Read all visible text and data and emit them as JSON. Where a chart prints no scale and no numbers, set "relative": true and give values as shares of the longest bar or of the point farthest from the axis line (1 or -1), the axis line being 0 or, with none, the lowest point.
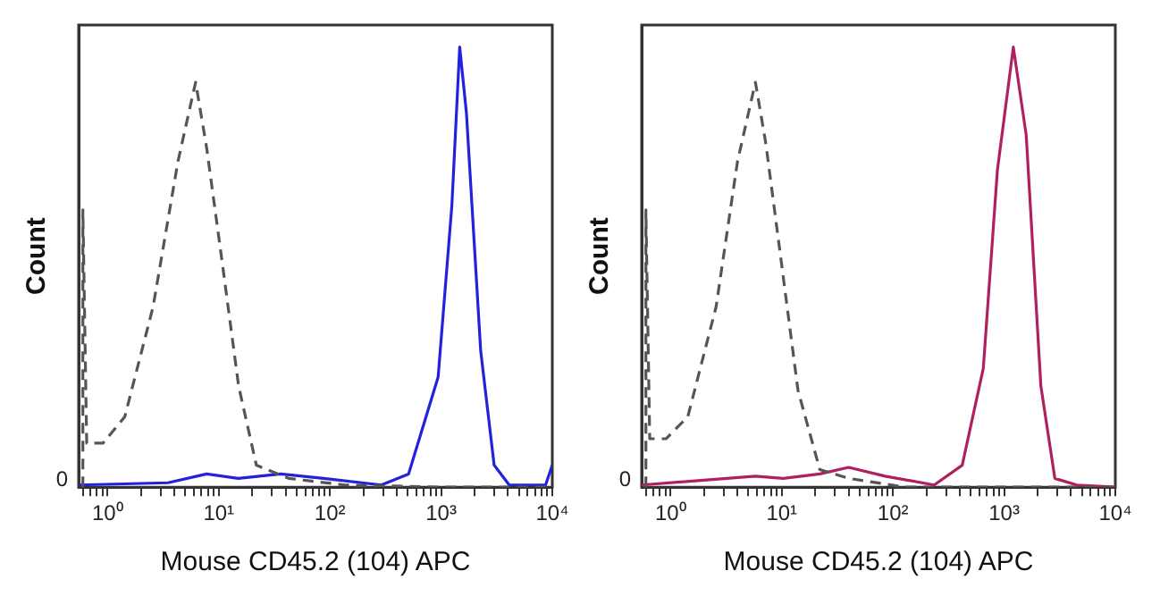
{
  "chart_data": [
    {
      "type": "line",
      "relative": true,
      "log": "x",
      "xlabel": "Mouse CD45.2 (104) APC",
      "ylabel": "Count",
      "annotations": [
        "0"
      ],
      "marker": "none",
      "grid": false,
      "xlim": [
        0.55,
        10000
      ],
      "xticks": [
        {
          "value": 0.6,
          "label": null
        },
        {
          "value": 0.7,
          "label": null
        },
        {
          "value": 0.8,
          "label": null
        },
        {
          "value": 0.9,
          "label": null
        },
        {
          "value": 1,
          "label": "10⁰"
        },
        {
          "value": 2,
          "label": null
        },
        {
          "value": 3,
          "label": null
        },
        {
          "value": 4,
          "label": null
        },
        {
          "value": 5,
          "label": null
        },
        {
          "value": 6,
          "label": null
        },
        {
          "value": 7,
          "label": null
        },
        {
          "value": 8,
          "label": null
        },
        {
          "value": 9,
          "label": null
        },
        {
          "value": 10,
          "label": "10¹"
        },
        {
          "value": 20,
          "label": null
        },
        {
          "value": 30,
          "label": null
        },
        {
          "value": 40,
          "label": null
        },
        {
          "value": 50,
          "label": null
        },
        {
          "value": 60,
          "label": null
        },
        {
          "value": 70,
          "label": null
        },
        {
          "value": 80,
          "label": null
        },
        {
          "value": 90,
          "label": null
        },
        {
          "value": 100,
          "label": "10²"
        },
        {
          "value": 200,
          "label": null
        },
        {
          "value": 300,
          "label": null
        },
        {
          "value": 400,
          "label": null
        },
        {
          "value": 500,
          "label": null
        },
        {
          "value": 600,
          "label": null
        },
        {
          "value": 700,
          "label": null
        },
        {
          "value": 800,
          "label": null
        },
        {
          "value": 900,
          "label": null
        },
        {
          "value": 1000,
          "label": "10³"
        },
        {
          "value": 2000,
          "label": null
        },
        {
          "value": 3000,
          "label": null
        },
        {
          "value": 4000,
          "label": null
        },
        {
          "value": 5000,
          "label": null
        },
        {
          "value": 6000,
          "label": null
        },
        {
          "value": 7000,
          "label": null
        },
        {
          "value": 8000,
          "label": null
        },
        {
          "value": 9000,
          "label": null
        },
        {
          "value": 10000,
          "label": "10⁴"
        }
      ],
      "series": [
        {
          "color": "#555555",
          "line_style": "dashed",
          "x": [
            0.6,
            0.6,
            0.65,
            0.91,
            1.43,
            2.57,
            4.3,
            6.2,
            7.8,
            10.5,
            15.1,
            21.8,
            42.5,
            136,
            1000,
            10000
          ],
          "values": [
            0,
            0.63,
            0.1,
            0.1,
            0.16,
            0.41,
            0.74,
            0.92,
            0.77,
            0.53,
            0.23,
            0.05,
            0.02,
            0.005,
            0,
            0
          ]
        },
        {
          "color": "#2222dd",
          "line_style": "solid",
          "x": [
            0.55,
            3.5,
            7.8,
            15,
            36,
            88,
            290,
            510,
            940,
            1250,
            1470,
            1690,
            2270,
            3000,
            4100,
            8700,
            10000
          ],
          "values": [
            0.005,
            0.01,
            0.03,
            0.02,
            0.03,
            0.02,
            0.005,
            0.03,
            0.25,
            0.64,
            1,
            0.85,
            0.31,
            0.05,
            0.005,
            0.005,
            0.05
          ]
        }
      ]
    },
    {
      "type": "line",
      "relative": true,
      "log": "x",
      "xlabel": "Mouse CD45.2 (104) APC",
      "ylabel": "Count",
      "annotations": [
        "0"
      ],
      "marker": "none",
      "grid": false,
      "xlim": [
        0.55,
        10000
      ],
      "xticks": [
        {
          "value": 0.6,
          "label": null
        },
        {
          "value": 0.7,
          "label": null
        },
        {
          "value": 0.8,
          "label": null
        },
        {
          "value": 0.9,
          "label": null
        },
        {
          "value": 1,
          "label": "10⁰"
        },
        {
          "value": 2,
          "label": null
        },
        {
          "value": 3,
          "label": null
        },
        {
          "value": 4,
          "label": null
        },
        {
          "value": 5,
          "label": null
        },
        {
          "value": 6,
          "label": null
        },
        {
          "value": 7,
          "label": null
        },
        {
          "value": 8,
          "label": null
        },
        {
          "value": 9,
          "label": null
        },
        {
          "value": 10,
          "label": "10¹"
        },
        {
          "value": 20,
          "label": null
        },
        {
          "value": 30,
          "label": null
        },
        {
          "value": 40,
          "label": null
        },
        {
          "value": 50,
          "label": null
        },
        {
          "value": 60,
          "label": null
        },
        {
          "value": 70,
          "label": null
        },
        {
          "value": 80,
          "label": null
        },
        {
          "value": 90,
          "label": null
        },
        {
          "value": 100,
          "label": "10²"
        },
        {
          "value": 200,
          "label": null
        },
        {
          "value": 300,
          "label": null
        },
        {
          "value": 400,
          "label": null
        },
        {
          "value": 500,
          "label": null
        },
        {
          "value": 600,
          "label": null
        },
        {
          "value": 700,
          "label": null
        },
        {
          "value": 800,
          "label": null
        },
        {
          "value": 900,
          "label": null
        },
        {
          "value": 1000,
          "label": "10³"
        },
        {
          "value": 2000,
          "label": null
        },
        {
          "value": 3000,
          "label": null
        },
        {
          "value": 4000,
          "label": null
        },
        {
          "value": 5000,
          "label": null
        },
        {
          "value": 6000,
          "label": null
        },
        {
          "value": 7000,
          "label": null
        },
        {
          "value": 8000,
          "label": null
        },
        {
          "value": 9000,
          "label": null
        },
        {
          "value": 10000,
          "label": "10⁴"
        }
      ],
      "series": [
        {
          "color": "#555555",
          "line_style": "dashed",
          "x": [
            0.6,
            0.6,
            0.65,
            0.91,
            1.43,
            2.57,
            4.0,
            5.8,
            7.2,
            9.7,
            14,
            22,
            40,
            130,
            10000
          ],
          "values": [
            0,
            0.63,
            0.11,
            0.11,
            0.16,
            0.41,
            0.74,
            0.92,
            0.78,
            0.53,
            0.22,
            0.04,
            0.02,
            0,
            0
          ]
        },
        {
          "color": "#b0205f",
          "line_style": "solid",
          "x": [
            0.55,
            3.2,
            5.8,
            10.3,
            22,
            40,
            85,
            235,
            420,
            650,
            870,
            1210,
            1580,
            2140,
            2860,
            4500,
            10000
          ],
          "values": [
            0.005,
            0.02,
            0.025,
            0.02,
            0.03,
            0.045,
            0.025,
            0.005,
            0.05,
            0.27,
            0.72,
            1,
            0.8,
            0.23,
            0.02,
            0.005,
            0
          ]
        }
      ]
    }
  ]
}
